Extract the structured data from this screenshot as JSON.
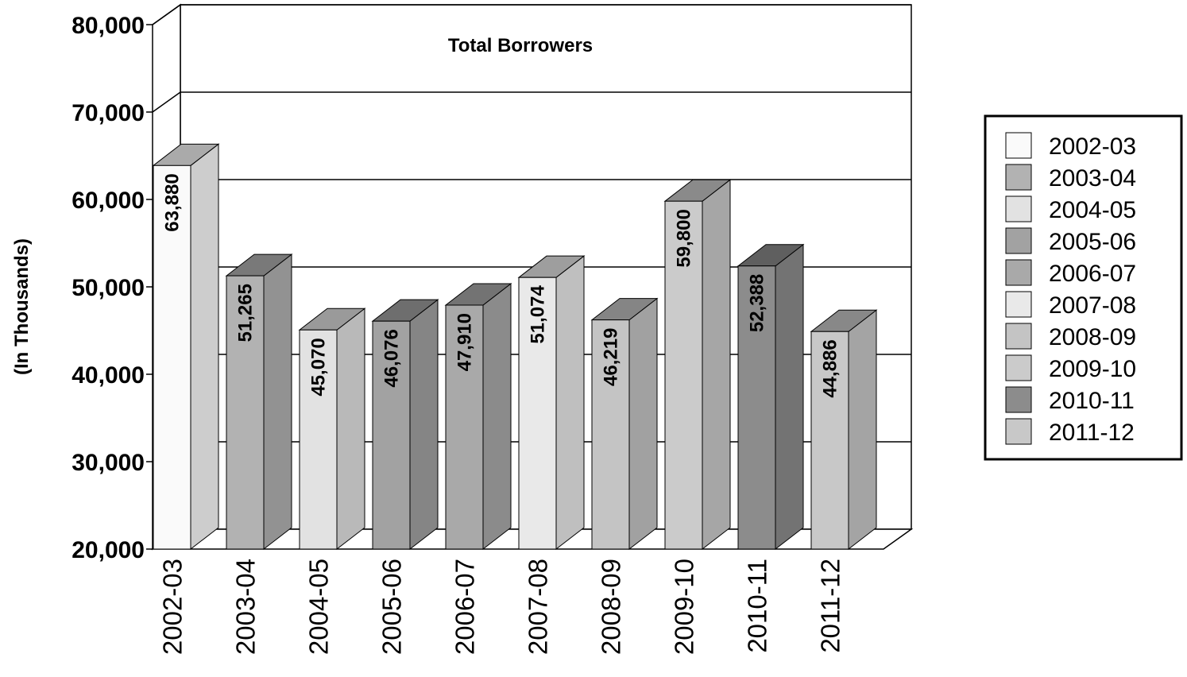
{
  "chart_data": {
    "type": "bar",
    "title": "Total Borrowers",
    "xlabel": "",
    "ylabel": "(In Thousands)",
    "ylim": [
      20000,
      80000
    ],
    "yticks": [
      "20,000",
      "30,000",
      "40,000",
      "50,000",
      "60,000",
      "70,000",
      "80,000"
    ],
    "ytick_values": [
      20000,
      30000,
      40000,
      50000,
      60000,
      70000,
      80000
    ],
    "categories": [
      "2002-03",
      "2003-04",
      "2004-05",
      "2005-06",
      "2006-07",
      "2007-08",
      "2008-09",
      "2009-10",
      "2010-11",
      "2011-12"
    ],
    "values": [
      63880,
      51265,
      45070,
      46076,
      47910,
      51074,
      46219,
      59800,
      52388,
      44886
    ],
    "value_labels": [
      "63,880",
      "51,265",
      "45,070",
      "46,076",
      "47,910",
      "51,074",
      "46,219",
      "59,800",
      "52,388",
      "44,886"
    ],
    "colors": [
      "#fafafa",
      "#b2b2b2",
      "#e2e2e2",
      "#a2a2a2",
      "#a9a9a9",
      "#e9e9e9",
      "#c4c4c4",
      "#cbcbcb",
      "#8c8c8c",
      "#c8c8c8"
    ],
    "legend": {
      "position": "right",
      "entries": [
        "2002-03",
        "2003-04",
        "2004-05",
        "2005-06",
        "2006-07",
        "2007-08",
        "2008-09",
        "2009-10",
        "2010-11",
        "2011-12"
      ]
    },
    "grid": true,
    "three_d": true
  }
}
